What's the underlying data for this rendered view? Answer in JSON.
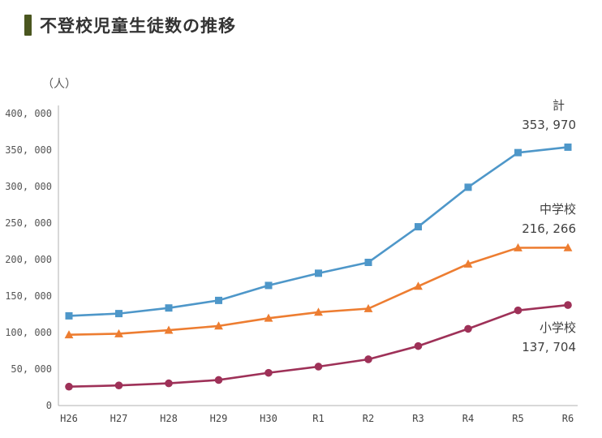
{
  "header": {
    "title": "不登校児童生徒数の推移",
    "accent_color": "#4a561f"
  },
  "chart_data": {
    "type": "line",
    "title": "不登校児童生徒数の推移",
    "unit_label": "（人）",
    "xlabel": "",
    "ylabel": "人",
    "categories": [
      "H26",
      "H27",
      "H28",
      "H29",
      "H30",
      "R1",
      "R2",
      "R3",
      "R4",
      "R5",
      "R6"
    ],
    "series": [
      {
        "name": "計",
        "marker": "square",
        "color": "#4e97c9",
        "values": [
          122897,
          125991,
          133683,
          144031,
          164528,
          181272,
          196127,
          244940,
          299048,
          346482,
          353970
        ],
        "end_label": "353, 970"
      },
      {
        "name": "中学校",
        "marker": "triangle",
        "color": "#ed7d31",
        "values": [
          97033,
          98408,
          103235,
          108999,
          119687,
          127922,
          132777,
          163442,
          193936,
          216112,
          216266
        ],
        "end_label": "216, 266"
      },
      {
        "name": "小学校",
        "marker": "circle",
        "color": "#9e3158",
        "values": [
          25864,
          27583,
          30448,
          35032,
          44841,
          53350,
          63350,
          81498,
          105112,
          130370,
          137704
        ],
        "end_label": "137, 704"
      }
    ],
    "ylim": [
      0,
      400000
    ],
    "ytick_step": 50000,
    "yticks": [
      "0",
      "50, 000",
      "100, 000",
      "150, 000",
      "200, 000",
      "250, 000",
      "300, 000",
      "350, 000",
      "400, 000"
    ],
    "grid": false,
    "legend_position": "end-of-line-labels",
    "axis_color": "#b0b0b0"
  }
}
